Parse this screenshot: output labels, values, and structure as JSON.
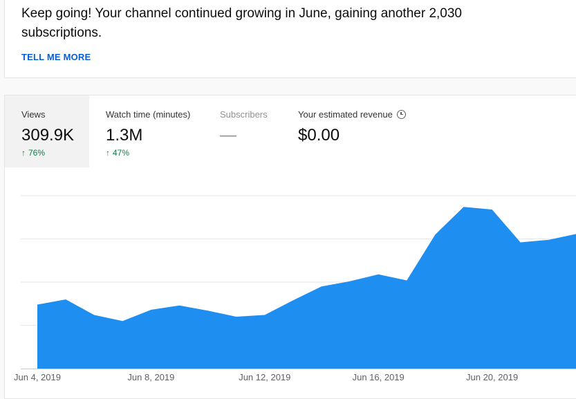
{
  "insight": {
    "text": "Keep going! Your channel continued growing in June, gaining another 2,030 subscriptions.",
    "link_label": "TELL ME MORE",
    "link_color": "#065fd4"
  },
  "metrics": [
    {
      "label": "Views",
      "value": "309.9K",
      "change": "76%",
      "trend": "up",
      "active": true
    },
    {
      "label": "Watch time (minutes)",
      "value": "1.3M",
      "change": "47%",
      "trend": "up",
      "active": false
    },
    {
      "label": "Subscribers",
      "value": "—",
      "change": "",
      "trend": "none",
      "active": false
    },
    {
      "label": "Your estimated revenue",
      "value": "$0.00",
      "change": "",
      "trend": "none",
      "active": false,
      "icon": "clock-icon"
    }
  ],
  "colors": {
    "area_fill": "#1e8ef0",
    "trend_up": "#0b8043",
    "active_tab_bg": "#f2f2f2"
  },
  "chart_data": {
    "type": "area",
    "x": [
      "Jun 4, 2019",
      "Jun 5, 2019",
      "Jun 6, 2019",
      "Jun 7, 2019",
      "Jun 8, 2019",
      "Jun 9, 2019",
      "Jun 10, 2019",
      "Jun 11, 2019",
      "Jun 12, 2019",
      "Jun 13, 2019",
      "Jun 14, 2019",
      "Jun 15, 2019",
      "Jun 16, 2019",
      "Jun 17, 2019",
      "Jun 18, 2019",
      "Jun 19, 2019",
      "Jun 20, 2019",
      "Jun 21, 2019",
      "Jun 22, 2019",
      "Jun 23, 2019"
    ],
    "values": [
      7.4,
      8.0,
      6.2,
      5.5,
      6.8,
      7.3,
      6.7,
      6.0,
      6.2,
      7.9,
      9.5,
      10.1,
      10.9,
      10.2,
      15.5,
      18.7,
      18.4,
      14.6,
      14.9,
      15.6
    ],
    "x_tick_labels": [
      "Jun 4, 2019",
      "Jun 8, 2019",
      "Jun 12, 2019",
      "Jun 16, 2019",
      "Jun 20, 2019"
    ],
    "ylim": [
      0,
      20
    ],
    "grid": true,
    "legend": "none"
  }
}
